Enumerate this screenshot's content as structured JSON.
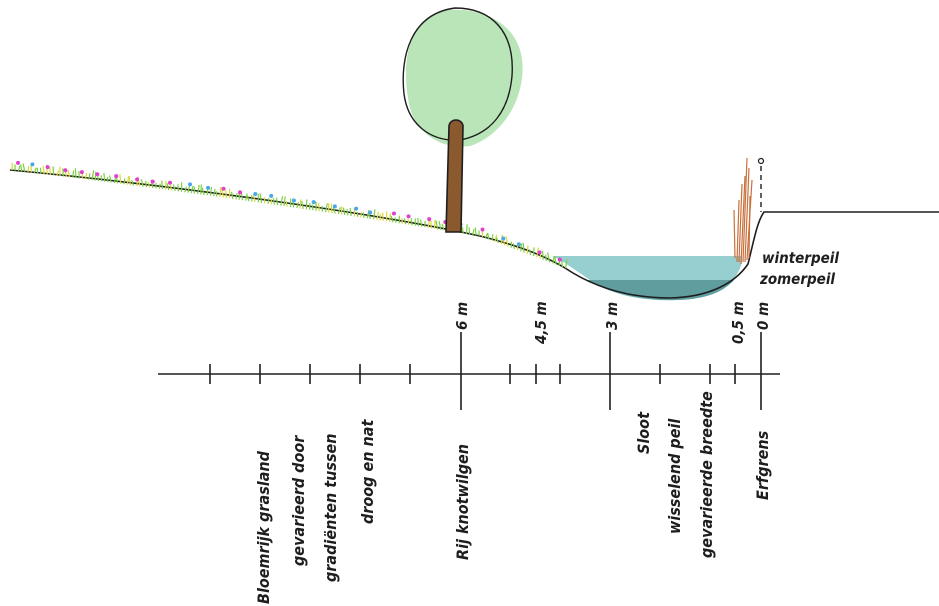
{
  "colors": {
    "ink": "#1e1e1e",
    "water": "#97cfd0",
    "water_deep": "#5f9d9f",
    "tree_crown": "#b9e5b9",
    "tree_trunk": "#8a5a2e",
    "grass": "#7ccf42",
    "grass_yellow": "#d7d83a",
    "flower_pink": "#e040ce",
    "flower_blue": "#4aa7e8",
    "reed": "#c8703b"
  },
  "icons": [
    "tree-icon",
    "reed-icon",
    "grass-strip-icon"
  ],
  "water_levels": {
    "winter": "winterpeil",
    "summer": "zomerpeil"
  },
  "ticks": {
    "6m": "6 m",
    "4_5m": "4,5 m",
    "3m": "3 m",
    "0_5m": "0,5 m",
    "0m": "0 m"
  },
  "zones": {
    "grassland": [
      "Bloemrijk grasland",
      "gevarieerd door",
      "gradiënten tussen",
      "droog en nat"
    ],
    "willows": [
      "Rij knotwilgen"
    ],
    "ditch": [
      "Sloot",
      "wisselend peil",
      "gevarieerde breedte"
    ],
    "boundary": [
      "Erfgrens"
    ]
  }
}
